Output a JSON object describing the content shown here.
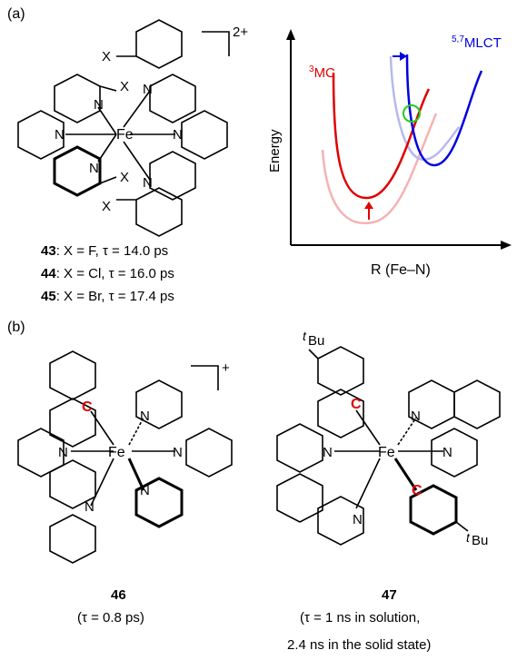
{
  "panel_a": {
    "label": "(a)",
    "charge": "2+",
    "atoms": {
      "metal": "Fe",
      "n": "N",
      "x": "X"
    },
    "compounds": [
      {
        "num": "43",
        "rest": ": X = F, τ = 14.0 ps"
      },
      {
        "num": "44",
        "rest": ": X = Cl, τ = 16.0 ps"
      },
      {
        "num": "45",
        "rest": ": X = Br, τ = 17.4 ps"
      }
    ],
    "energy_plot": {
      "ylabel": "Energy",
      "xlabel": "R (Fe–N)",
      "mc_label_sup": "3",
      "mc_label": "MC",
      "mlct_label_sup": "5,7",
      "mlct_label": "MLCT",
      "colors": {
        "mc": "#e00000",
        "mc_faint": "#f4b3b3",
        "mlct": "#0000e0",
        "mlct_faint": "#b8b8ee",
        "crossing": "#22cc22"
      }
    }
  },
  "panel_b": {
    "label": "(b)",
    "charge": "+",
    "atoms": {
      "metal": "Fe",
      "n": "N",
      "c": "C"
    },
    "tbu_t": "t",
    "tbu_bu": "Bu",
    "compound_46": {
      "num": "46",
      "tau": "(τ = 0.8 ps)"
    },
    "compound_47": {
      "num": "47",
      "tau_line1": "(τ = 1 ns in solution,",
      "tau_line2": "2.4 ns in the solid state)"
    }
  }
}
